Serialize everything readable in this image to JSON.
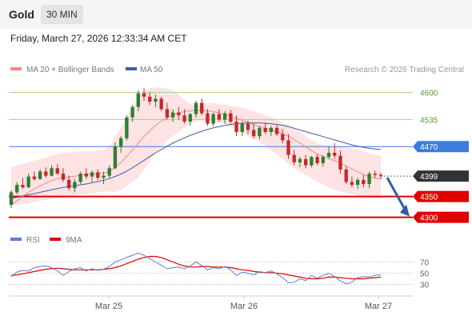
{
  "header": {
    "title": "Gold",
    "interval": "30 MIN"
  },
  "datetime": "Friday, March 27, 2026 12:33:34 AM CET",
  "legend": {
    "ma20_label": "MA 20 + Bollinger Bands",
    "ma50_label": "MA 50",
    "copyright": "Research © 2026 Trading Central",
    "rsi_label": "RSI",
    "ma9_label": "9MA"
  },
  "colors": {
    "candle_up": "#2e7d32",
    "candle_down": "#c62828",
    "ma20": "#ef8a8a",
    "bollinger_fill": "#fde3e3",
    "ma50": "#3f5f9f",
    "resistance": "#a6d38a",
    "pivot": "#3b7ddd",
    "support": "#e00000",
    "current": "#333333",
    "rsi": "#5b7fd0",
    "rsi_ma": "#e00000",
    "arrow": "#2f5da8"
  },
  "chart_data": [
    {
      "type": "candlestick",
      "title": "Gold",
      "interval": "30 MIN",
      "x_ticks": [
        "Mar 25",
        "Mar 26",
        "Mar 27"
      ],
      "ylim": [
        4280,
        4630
      ],
      "levels": [
        {
          "value": 4600,
          "label": "4600",
          "kind": "resistance"
        },
        {
          "value": 4535,
          "label": "4535",
          "kind": "resistance"
        },
        {
          "value": 4470,
          "label": "4470",
          "kind": "pivot"
        },
        {
          "value": 4399,
          "label": "4399",
          "kind": "current"
        },
        {
          "value": 4350,
          "label": "4350",
          "kind": "support"
        },
        {
          "value": 4300,
          "label": "4300",
          "kind": "support"
        }
      ],
      "series": [
        {
          "name": "Gold",
          "ohlc": [
            [
              4330,
              4365,
              4322,
              4360
            ],
            [
              4360,
              4385,
              4355,
              4378
            ],
            [
              4378,
              4395,
              4368,
              4372
            ],
            [
              4372,
              4405,
              4370,
              4398
            ],
            [
              4398,
              4410,
              4388,
              4392
            ],
            [
              4392,
              4415,
              4390,
              4410
            ],
            [
              4410,
              4420,
              4395,
              4400
            ],
            [
              4400,
              4425,
              4398,
              4418
            ],
            [
              4418,
              4428,
              4402,
              4405
            ],
            [
              4405,
              4418,
              4385,
              4390
            ],
            [
              4390,
              4400,
              4365,
              4370
            ],
            [
              4370,
              4392,
              4360,
              4385
            ],
            [
              4385,
              4410,
              4380,
              4405
            ],
            [
              4405,
              4418,
              4392,
              4398
            ],
            [
              4398,
              4412,
              4385,
              4408
            ],
            [
              4408,
              4415,
              4390,
              4395
            ],
            [
              4395,
              4410,
              4380,
              4400
            ],
            [
              4400,
              4425,
              4395,
              4418
            ],
            [
              4418,
              4480,
              4415,
              4470
            ],
            [
              4470,
              4495,
              4455,
              4490
            ],
            [
              4490,
              4545,
              4485,
              4540
            ],
            [
              4540,
              4570,
              4530,
              4565
            ],
            [
              4565,
              4605,
              4555,
              4598
            ],
            [
              4598,
              4610,
              4580,
              4590
            ],
            [
              4590,
              4600,
              4570,
              4578
            ],
            [
              4578,
              4595,
              4565,
              4585
            ],
            [
              4585,
              4590,
              4555,
              4560
            ],
            [
              4560,
              4575,
              4535,
              4540
            ],
            [
              4540,
              4560,
              4530,
              4552
            ],
            [
              4552,
              4565,
              4535,
              4545
            ],
            [
              4545,
              4560,
              4525,
              4530
            ],
            [
              4530,
              4550,
              4520,
              4548
            ],
            [
              4548,
              4580,
              4540,
              4575
            ],
            [
              4575,
              4585,
              4545,
              4550
            ],
            [
              4550,
              4560,
              4520,
              4525
            ],
            [
              4525,
              4552,
              4518,
              4548
            ],
            [
              4548,
              4560,
              4530,
              4535
            ],
            [
              4535,
              4555,
              4525,
              4550
            ],
            [
              4550,
              4558,
              4525,
              4530
            ],
            [
              4530,
              4545,
              4495,
              4505
            ],
            [
              4505,
              4530,
              4495,
              4525
            ],
            [
              4525,
              4532,
              4500,
              4510
            ],
            [
              4510,
              4525,
              4490,
              4495
            ],
            [
              4495,
              4520,
              4488,
              4515
            ],
            [
              4515,
              4528,
              4500,
              4505
            ],
            [
              4505,
              4520,
              4495,
              4515
            ],
            [
              4515,
              4522,
              4495,
              4500
            ],
            [
              4500,
              4512,
              4478,
              4485
            ],
            [
              4485,
              4500,
              4440,
              4450
            ],
            [
              4450,
              4462,
              4425,
              4432
            ],
            [
              4432,
              4445,
              4420,
              4440
            ],
            [
              4440,
              4450,
              4418,
              4425
            ],
            [
              4425,
              4448,
              4420,
              4445
            ],
            [
              4445,
              4452,
              4425,
              4430
            ],
            [
              4430,
              4450,
              4422,
              4445
            ],
            [
              4445,
              4470,
              4440,
              4455
            ],
            [
              4455,
              4478,
              4440,
              4448
            ],
            [
              4448,
              4460,
              4405,
              4415
            ],
            [
              4415,
              4422,
              4380,
              4385
            ],
            [
              4385,
              4398,
              4372,
              4378
            ],
            [
              4378,
              4395,
              4368,
              4390
            ],
            [
              4390,
              4402,
              4372,
              4380
            ],
            [
              4380,
              4410,
              4370,
              4405
            ],
            [
              4405,
              4412,
              4395,
              4402
            ],
            [
              4402,
              4408,
              4392,
              4399
            ]
          ]
        },
        {
          "name": "MA 20",
          "values": [
            4330,
            4340,
            4350,
            4360,
            4368,
            4375,
            4382,
            4388,
            4393,
            4396,
            4397,
            4399,
            4401,
            4403,
            4404,
            4405,
            4406,
            4410,
            4420,
            4432,
            4446,
            4462,
            4478,
            4494,
            4508,
            4521,
            4531,
            4539,
            4546,
            4551,
            4554,
            4556,
            4557,
            4557,
            4556,
            4554,
            4551,
            4547,
            4543,
            4538,
            4533,
            4528,
            4523,
            4518,
            4514,
            4510,
            4506,
            4501,
            4495,
            4487,
            4478,
            4469,
            4460,
            4452,
            4446,
            4441,
            4436,
            4430,
            4423,
            4416,
            4409,
            4403,
            4397,
            4394,
            4392
          ]
        },
        {
          "name": "Bollinger Upper",
          "values": [
            4420,
            4425,
            4428,
            4432,
            4436,
            4440,
            4444,
            4448,
            4452,
            4455,
            4456,
            4457,
            4458,
            4458,
            4459,
            4460,
            4462,
            4470,
            4495,
            4515,
            4540,
            4565,
            4590,
            4605,
            4610,
            4612,
            4612,
            4610,
            4605,
            4595,
            4582,
            4572,
            4570,
            4572,
            4574,
            4574,
            4572,
            4570,
            4568,
            4566,
            4564,
            4560,
            4555,
            4550,
            4545,
            4540,
            4535,
            4528,
            4522,
            4515,
            4505,
            4495,
            4485,
            4478,
            4474,
            4472,
            4470,
            4469,
            4468,
            4465,
            4462,
            4458,
            4454,
            4450,
            4448
          ]
        },
        {
          "name": "Bollinger Lower",
          "values": [
            4330,
            4330,
            4332,
            4334,
            4336,
            4340,
            4342,
            4344,
            4346,
            4348,
            4350,
            4352,
            4354,
            4356,
            4358,
            4360,
            4362,
            4362,
            4360,
            4365,
            4375,
            4385,
            4395,
            4415,
            4435,
            4455,
            4470,
            4485,
            4495,
            4505,
            4515,
            4525,
            4530,
            4532,
            4532,
            4530,
            4528,
            4524,
            4518,
            4510,
            4502,
            4495,
            4488,
            4480,
            4472,
            4462,
            4450,
            4440,
            4428,
            4418,
            4410,
            4402,
            4394,
            4386,
            4378,
            4372,
            4366,
            4362,
            4358,
            4356,
            4352,
            4350,
            4348,
            4346,
            4344
          ]
        },
        {
          "name": "MA 50",
          "values": [
            4345,
            4348,
            4351,
            4354,
            4357,
            4360,
            4363,
            4366,
            4369,
            4372,
            4374,
            4376,
            4378,
            4380,
            4383,
            4386,
            4389,
            4393,
            4398,
            4404,
            4411,
            4419,
            4428,
            4437,
            4446,
            4455,
            4463,
            4471,
            4478,
            4485,
            4491,
            4497,
            4502,
            4507,
            4511,
            4515,
            4518,
            4521,
            4523,
            4525,
            4526,
            4527,
            4527,
            4527,
            4526,
            4525,
            4523,
            4521,
            4518,
            4514,
            4510,
            4506,
            4502,
            4498,
            4494,
            4490,
            4486,
            4482,
            4478,
            4474,
            4471,
            4468,
            4466,
            4464,
            4463
          ]
        }
      ]
    },
    {
      "type": "line",
      "title": "RSI",
      "y_ticks": [
        70,
        50,
        30
      ],
      "ylim": [
        15,
        95
      ],
      "series": [
        {
          "name": "RSI",
          "values": [
            44,
            52,
            55,
            54,
            60,
            62,
            63,
            60,
            54,
            46,
            53,
            58,
            60,
            54,
            58,
            55,
            57,
            62,
            70,
            74,
            78,
            82,
            86,
            82,
            76,
            70,
            64,
            58,
            60,
            61,
            58,
            63,
            70,
            64,
            56,
            60,
            58,
            62,
            56,
            46,
            52,
            50,
            47,
            53,
            51,
            54,
            49,
            42,
            33,
            34,
            40,
            37,
            46,
            41,
            46,
            50,
            44,
            36,
            31,
            34,
            42,
            44,
            43,
            46,
            47
          ]
        },
        {
          "name": "9MA",
          "values": [
            46,
            47,
            49,
            51,
            53,
            55,
            57,
            58,
            59,
            58,
            57,
            56,
            56,
            56,
            56,
            56,
            57,
            58,
            60,
            63,
            67,
            71,
            75,
            78,
            80,
            80,
            78,
            74,
            70,
            66,
            63,
            61,
            61,
            62,
            62,
            61,
            61,
            61,
            60,
            58,
            56,
            55,
            53,
            52,
            51,
            51,
            50,
            49,
            47,
            45,
            43,
            41,
            40,
            40,
            41,
            43,
            43,
            42,
            41,
            40,
            40,
            40,
            41,
            42,
            43
          ]
        }
      ]
    }
  ]
}
